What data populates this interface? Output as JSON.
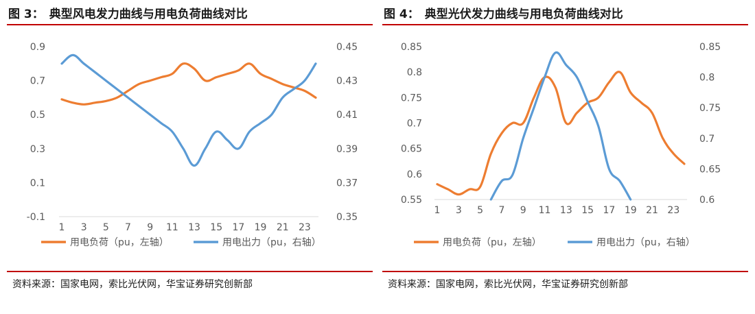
{
  "colors": {
    "orange": "#ED7D31",
    "blue": "#5B9BD5",
    "rule": "#C00000",
    "axis": "#D9D9D9",
    "tick": "#595959"
  },
  "charts": [
    {
      "title_num": "图 3：",
      "title_text": "典型风电发力曲线与用电负荷曲线对比",
      "source": "资料来源：国家电网，索比光伏网，华宝证券研究创新部",
      "chart_data": {
        "type": "line",
        "x_tick_labels": [
          "1",
          "3",
          "5",
          "7",
          "9",
          "11",
          "13",
          "15",
          "17",
          "19",
          "21",
          "23"
        ],
        "x_range": [
          1,
          24
        ],
        "y_left": {
          "range": [
            -0.1,
            0.9
          ],
          "ticks": [
            -0.1,
            0.1,
            0.3,
            0.5,
            0.7,
            0.9
          ],
          "tick_labels": [
            "-0.1",
            "0.1",
            "0.3",
            "0.5",
            "0.7",
            "0.9"
          ]
        },
        "y_right": {
          "range": [
            0.35,
            0.45
          ],
          "ticks": [
            0.35,
            0.37,
            0.39,
            0.41,
            0.43,
            0.45
          ],
          "tick_labels": [
            "0.35",
            "0.37",
            "0.39",
            "0.41",
            "0.43",
            "0.45"
          ]
        },
        "legend_position": "bottom",
        "series": [
          {
            "name": "用电负荷（pu，左轴）",
            "axis": "left",
            "color": "#ED7D31",
            "x": [
              1,
              2,
              3,
              4,
              5,
              6,
              7,
              8,
              9,
              10,
              11,
              12,
              13,
              14,
              15,
              16,
              17,
              18,
              19,
              20,
              21,
              22,
              23,
              24
            ],
            "y": [
              0.59,
              0.57,
              0.56,
              0.57,
              0.58,
              0.6,
              0.64,
              0.68,
              0.7,
              0.72,
              0.74,
              0.8,
              0.77,
              0.7,
              0.72,
              0.74,
              0.76,
              0.8,
              0.74,
              0.71,
              0.68,
              0.66,
              0.64,
              0.6
            ]
          },
          {
            "name": "用电出力（pu，右轴）",
            "axis": "right",
            "color": "#5B9BD5",
            "x": [
              1,
              2,
              3,
              4,
              5,
              6,
              7,
              8,
              9,
              10,
              11,
              12,
              13,
              14,
              15,
              16,
              17,
              18,
              19,
              20,
              21,
              22,
              23,
              24
            ],
            "y": [
              0.44,
              0.445,
              0.44,
              0.435,
              0.43,
              0.425,
              0.42,
              0.415,
              0.41,
              0.405,
              0.4,
              0.39,
              0.38,
              0.39,
              0.4,
              0.395,
              0.39,
              0.4,
              0.405,
              0.41,
              0.42,
              0.425,
              0.43,
              0.44
            ]
          }
        ]
      }
    },
    {
      "title_num": "图 4：",
      "title_text": "典型光伏发力曲线与用电负荷曲线对比",
      "source": "资料来源：国家电网，索比光伏网，华宝证券研究创新部",
      "chart_data": {
        "type": "line",
        "x_tick_labels": [
          "1",
          "3",
          "5",
          "7",
          "9",
          "11",
          "13",
          "15",
          "17",
          "19",
          "21",
          "23"
        ],
        "x_range": [
          1,
          24
        ],
        "y_left": {
          "range": [
            0.55,
            0.85
          ],
          "ticks": [
            0.55,
            0.6,
            0.65,
            0.7,
            0.75,
            0.8,
            0.85
          ],
          "tick_labels": [
            "0.55",
            "0.6",
            "0.65",
            "0.7",
            "0.75",
            "0.8",
            "0.85"
          ]
        },
        "y_right": {
          "range": [
            0.6,
            0.85
          ],
          "ticks": [
            0.6,
            0.65,
            0.7,
            0.75,
            0.8,
            0.85
          ],
          "tick_labels": [
            "0.6",
            "0.65",
            "0.7",
            "0.75",
            "0.8",
            "0.85"
          ]
        },
        "legend_position": "bottom",
        "series": [
          {
            "name": "用电负荷（pu，左轴）",
            "axis": "left",
            "color": "#ED7D31",
            "x": [
              1,
              2,
              3,
              4,
              5,
              6,
              7,
              8,
              9,
              10,
              11,
              12,
              13,
              14,
              15,
              16,
              17,
              18,
              19,
              20,
              21,
              22,
              23,
              24
            ],
            "y": [
              0.58,
              0.57,
              0.56,
              0.57,
              0.575,
              0.64,
              0.68,
              0.7,
              0.7,
              0.75,
              0.79,
              0.77,
              0.7,
              0.72,
              0.74,
              0.75,
              0.78,
              0.8,
              0.76,
              0.74,
              0.72,
              0.67,
              0.64,
              0.62
            ]
          },
          {
            "name": "用电出力（pu，右轴）",
            "axis": "right",
            "color": "#5B9BD5",
            "x": [
              6,
              7,
              8,
              9,
              10,
              11,
              12,
              13,
              14,
              15,
              16,
              17,
              18,
              19
            ],
            "y": [
              0.6,
              0.63,
              0.64,
              0.7,
              0.75,
              0.8,
              0.84,
              0.82,
              0.8,
              0.76,
              0.72,
              0.65,
              0.63,
              0.6
            ]
          }
        ]
      }
    }
  ]
}
